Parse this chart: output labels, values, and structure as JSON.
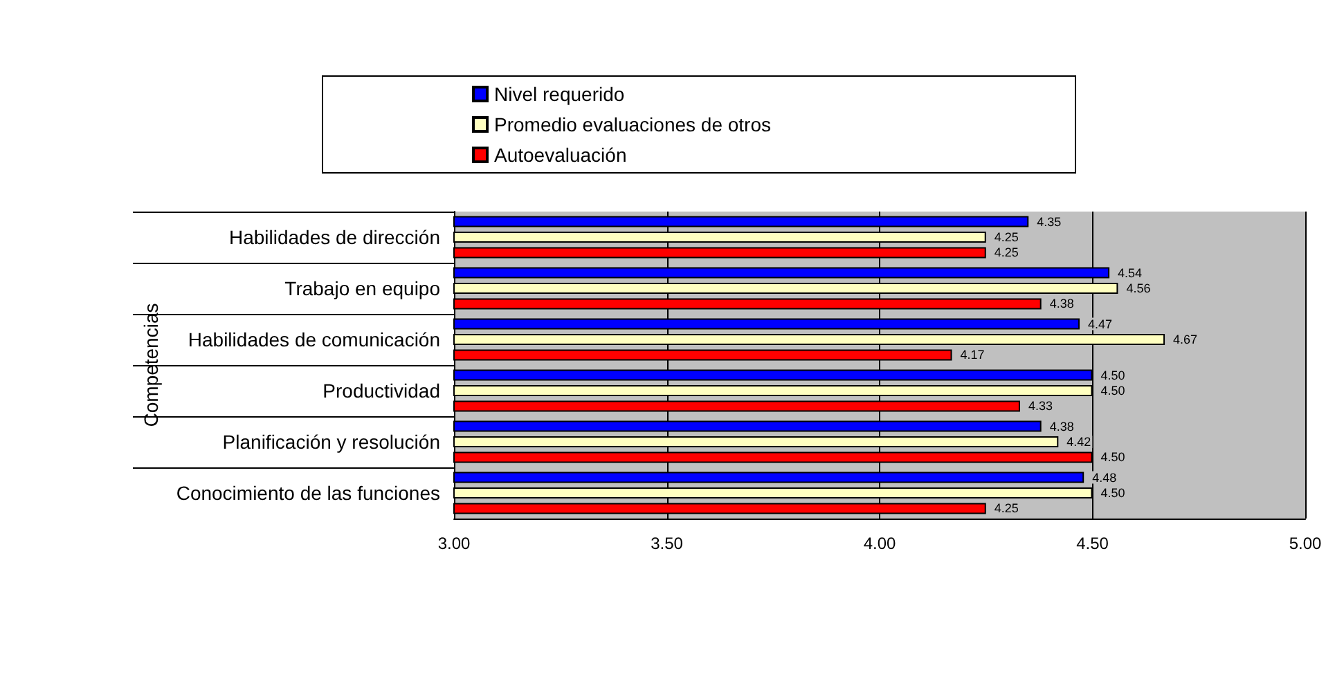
{
  "chart_data": {
    "type": "bar",
    "orientation": "horizontal",
    "ylabel": "Competencias",
    "categories": [
      "Habilidades de dirección",
      "Trabajo en equipo",
      "Habilidades de comunicación",
      "Productividad",
      "Planificación y resolución",
      "Conocimiento de las funciones"
    ],
    "series": [
      {
        "name": "Nivel requerido",
        "color": "#0000ff",
        "values": [
          4.35,
          4.54,
          4.47,
          4.5,
          4.38,
          4.48
        ],
        "value_labels": [
          "4.35",
          "4.54",
          "4.47",
          "4.50",
          "4.38",
          "4.48"
        ]
      },
      {
        "name": "Promedio evaluaciones de otros",
        "color": "#ffffc0",
        "values": [
          4.25,
          4.56,
          4.67,
          4.5,
          4.42,
          4.5
        ],
        "value_labels": [
          "4.25",
          "4.56",
          "4.67",
          "4.50",
          "4.42",
          "4.50"
        ]
      },
      {
        "name": "Autoevaluación",
        "color": "#ff0000",
        "values": [
          4.25,
          4.38,
          4.17,
          4.33,
          4.5,
          4.25
        ],
        "value_labels": [
          "4.25",
          "4.38",
          "4.17",
          "4.33",
          "4.50",
          "4.25"
        ]
      }
    ],
    "xlim": [
      3,
      5
    ],
    "xticks": [
      {
        "value": 3,
        "label": "3.00"
      },
      {
        "value": 3.5,
        "label": "3.50"
      },
      {
        "value": 4,
        "label": "4.00"
      },
      {
        "value": 4.5,
        "label": "4.50"
      },
      {
        "value": 5,
        "label": "5.00"
      }
    ],
    "grid": "x",
    "legend": "top"
  }
}
